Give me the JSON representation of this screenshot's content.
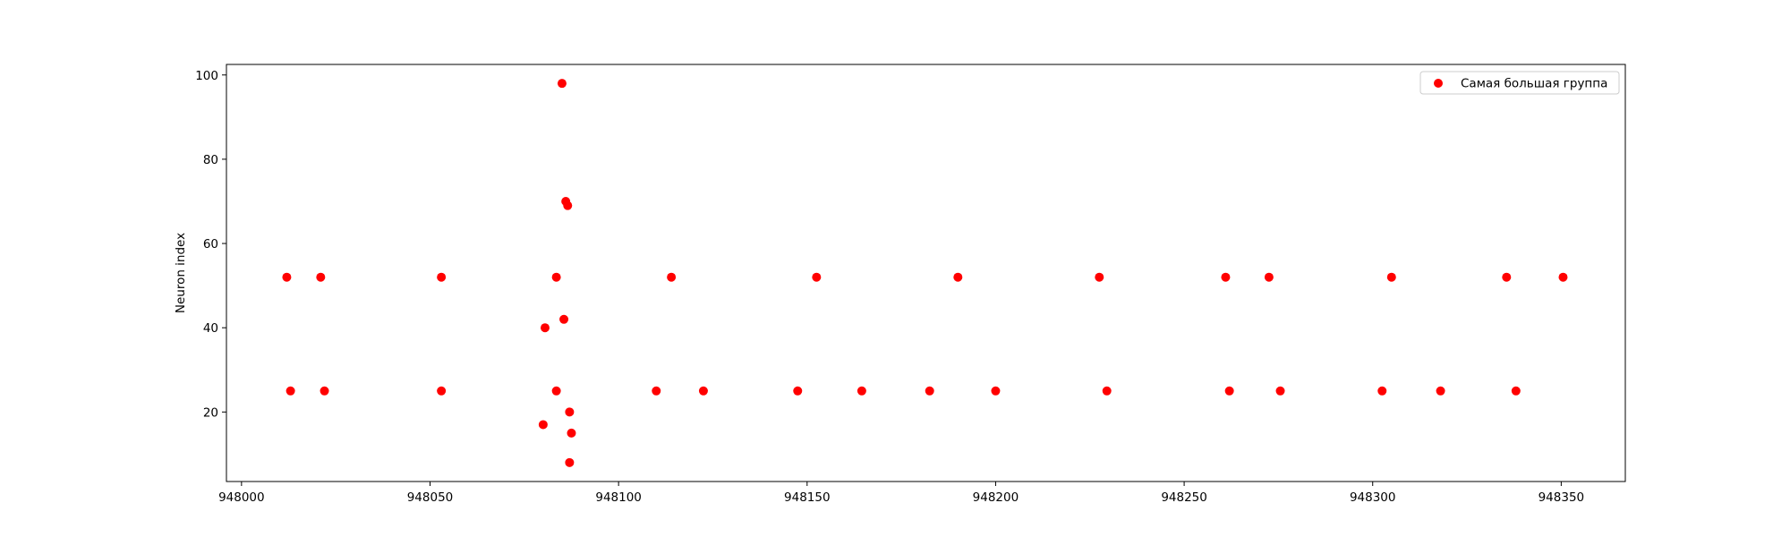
{
  "chart_data": {
    "type": "scatter",
    "title": "",
    "xlabel": "",
    "ylabel": "Neuron index",
    "xlim": [
      947996,
      948367
    ],
    "ylim": [
      3.5,
      102.5
    ],
    "xticks": [
      948000,
      948050,
      948100,
      948150,
      948200,
      948250,
      948300,
      948350
    ],
    "yticks": [
      20,
      40,
      60,
      80,
      100
    ],
    "grid": false,
    "legend_position": "top-right",
    "series": [
      {
        "name": "Самая большая группа",
        "color": "#ff0000",
        "points": [
          {
            "x": 948012,
            "y": 52
          },
          {
            "x": 948013,
            "y": 25
          },
          {
            "x": 948021,
            "y": 52
          },
          {
            "x": 948022,
            "y": 25
          },
          {
            "x": 948053,
            "y": 52
          },
          {
            "x": 948053,
            "y": 25
          },
          {
            "x": 948080,
            "y": 17
          },
          {
            "x": 948080.5,
            "y": 40
          },
          {
            "x": 948083.5,
            "y": 52
          },
          {
            "x": 948083.5,
            "y": 25
          },
          {
            "x": 948085,
            "y": 98
          },
          {
            "x": 948085.5,
            "y": 42
          },
          {
            "x": 948086,
            "y": 70
          },
          {
            "x": 948086.5,
            "y": 69
          },
          {
            "x": 948087,
            "y": 20
          },
          {
            "x": 948087,
            "y": 8
          },
          {
            "x": 948087.5,
            "y": 15
          },
          {
            "x": 948110,
            "y": 25
          },
          {
            "x": 948114,
            "y": 52
          },
          {
            "x": 948122.5,
            "y": 25
          },
          {
            "x": 948147.5,
            "y": 25
          },
          {
            "x": 948152.5,
            "y": 52
          },
          {
            "x": 948164.5,
            "y": 25
          },
          {
            "x": 948182.5,
            "y": 25
          },
          {
            "x": 948190,
            "y": 52
          },
          {
            "x": 948200,
            "y": 25
          },
          {
            "x": 948227.5,
            "y": 52
          },
          {
            "x": 948229.5,
            "y": 25
          },
          {
            "x": 948261,
            "y": 52
          },
          {
            "x": 948262,
            "y": 25
          },
          {
            "x": 948272.5,
            "y": 52
          },
          {
            "x": 948275.5,
            "y": 25
          },
          {
            "x": 948302.5,
            "y": 25
          },
          {
            "x": 948305,
            "y": 52
          },
          {
            "x": 948318,
            "y": 25
          },
          {
            "x": 948335.5,
            "y": 52
          },
          {
            "x": 948338,
            "y": 25
          },
          {
            "x": 948350.5,
            "y": 52
          }
        ]
      }
    ]
  }
}
